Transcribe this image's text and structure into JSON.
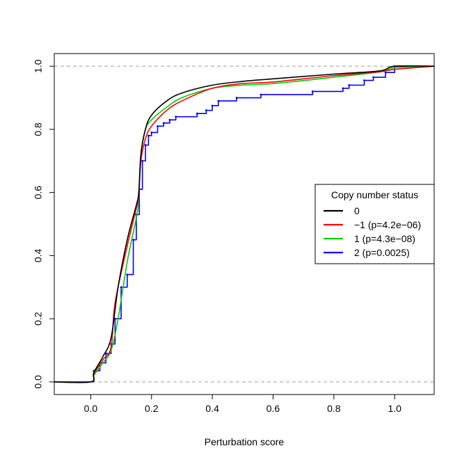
{
  "chart_data": {
    "type": "line",
    "title": "",
    "xlabel": "Perturbation score",
    "ylabel": "",
    "xlim": [
      -0.12,
      1.13
    ],
    "ylim": [
      -0.04,
      1.04
    ],
    "x_ticks": [
      "0.0",
      "0.2",
      "0.4",
      "0.6",
      "0.8",
      "1.0"
    ],
    "y_ticks": [
      "0.0",
      "0.2",
      "0.4",
      "0.6",
      "0.8",
      "1.0"
    ],
    "reference_lines": [
      0,
      1
    ],
    "legend": {
      "title": "Copy number status",
      "position": "right"
    },
    "series": [
      {
        "name": "0",
        "color": "#000000",
        "style": "smooth",
        "points": [
          [
            -0.12,
            0
          ],
          [
            0,
            0
          ],
          [
            0.01,
            0.03
          ],
          [
            0.04,
            0.08
          ],
          [
            0.067,
            0.14
          ],
          [
            0.09,
            0.3
          ],
          [
            0.12,
            0.45
          ],
          [
            0.15,
            0.56
          ],
          [
            0.158,
            0.6
          ],
          [
            0.165,
            0.72
          ],
          [
            0.18,
            0.8
          ],
          [
            0.2,
            0.845
          ],
          [
            0.25,
            0.89
          ],
          [
            0.3,
            0.915
          ],
          [
            0.4,
            0.94
          ],
          [
            0.5,
            0.952
          ],
          [
            0.6,
            0.96
          ],
          [
            0.8,
            0.975
          ],
          [
            0.95,
            0.985
          ],
          [
            1.0,
            1.0
          ],
          [
            1.13,
            1.0
          ]
        ]
      },
      {
        "name": "−1 (p=4.2e−06)",
        "color": "#ff0000",
        "style": "smooth",
        "points": [
          [
            -0.12,
            0
          ],
          [
            0,
            0
          ],
          [
            0.01,
            0.025
          ],
          [
            0.04,
            0.07
          ],
          [
            0.067,
            0.11
          ],
          [
            0.08,
            0.25
          ],
          [
            0.12,
            0.43
          ],
          [
            0.15,
            0.55
          ],
          [
            0.158,
            0.59
          ],
          [
            0.165,
            0.7
          ],
          [
            0.18,
            0.77
          ],
          [
            0.2,
            0.81
          ],
          [
            0.25,
            0.86
          ],
          [
            0.3,
            0.89
          ],
          [
            0.4,
            0.93
          ],
          [
            0.5,
            0.945
          ],
          [
            0.6,
            0.95
          ],
          [
            0.8,
            0.97
          ],
          [
            0.95,
            0.982
          ],
          [
            1.0,
            0.99
          ],
          [
            1.13,
            1.0
          ]
        ]
      },
      {
        "name": "1 (p=4.3e−08)",
        "color": "#00cc00",
        "style": "smooth",
        "points": [
          [
            -0.12,
            0
          ],
          [
            0,
            0
          ],
          [
            0.01,
            0.02
          ],
          [
            0.04,
            0.06
          ],
          [
            0.067,
            0.1
          ],
          [
            0.09,
            0.2
          ],
          [
            0.12,
            0.38
          ],
          [
            0.15,
            0.52
          ],
          [
            0.158,
            0.58
          ],
          [
            0.165,
            0.72
          ],
          [
            0.18,
            0.8
          ],
          [
            0.2,
            0.83
          ],
          [
            0.25,
            0.87
          ],
          [
            0.3,
            0.9
          ],
          [
            0.4,
            0.93
          ],
          [
            0.5,
            0.94
          ],
          [
            0.6,
            0.945
          ],
          [
            0.8,
            0.965
          ],
          [
            0.95,
            0.982
          ],
          [
            1.0,
            0.995
          ],
          [
            1.13,
            1.0
          ]
        ]
      },
      {
        "name": "2 (p=0.0025)",
        "color": "#0000ff",
        "style": "step",
        "points": [
          [
            -0.12,
            0
          ],
          [
            0,
            0
          ],
          [
            0.01,
            0.035
          ],
          [
            0.03,
            0.06
          ],
          [
            0.05,
            0.09
          ],
          [
            0.067,
            0.12
          ],
          [
            0.08,
            0.2
          ],
          [
            0.1,
            0.3
          ],
          [
            0.12,
            0.34
          ],
          [
            0.14,
            0.45
          ],
          [
            0.15,
            0.53
          ],
          [
            0.16,
            0.61
          ],
          [
            0.17,
            0.7
          ],
          [
            0.18,
            0.75
          ],
          [
            0.19,
            0.78
          ],
          [
            0.2,
            0.79
          ],
          [
            0.22,
            0.81
          ],
          [
            0.24,
            0.82
          ],
          [
            0.26,
            0.83
          ],
          [
            0.28,
            0.84
          ],
          [
            0.35,
            0.85
          ],
          [
            0.38,
            0.86
          ],
          [
            0.4,
            0.875
          ],
          [
            0.42,
            0.89
          ],
          [
            0.48,
            0.9
          ],
          [
            0.56,
            0.91
          ],
          [
            0.73,
            0.92
          ],
          [
            0.83,
            0.93
          ],
          [
            0.85,
            0.94
          ],
          [
            0.9,
            0.955
          ],
          [
            0.93,
            0.965
          ],
          [
            0.97,
            0.98
          ],
          [
            1.0,
            1.0
          ],
          [
            1.13,
            1.0
          ]
        ]
      }
    ]
  }
}
